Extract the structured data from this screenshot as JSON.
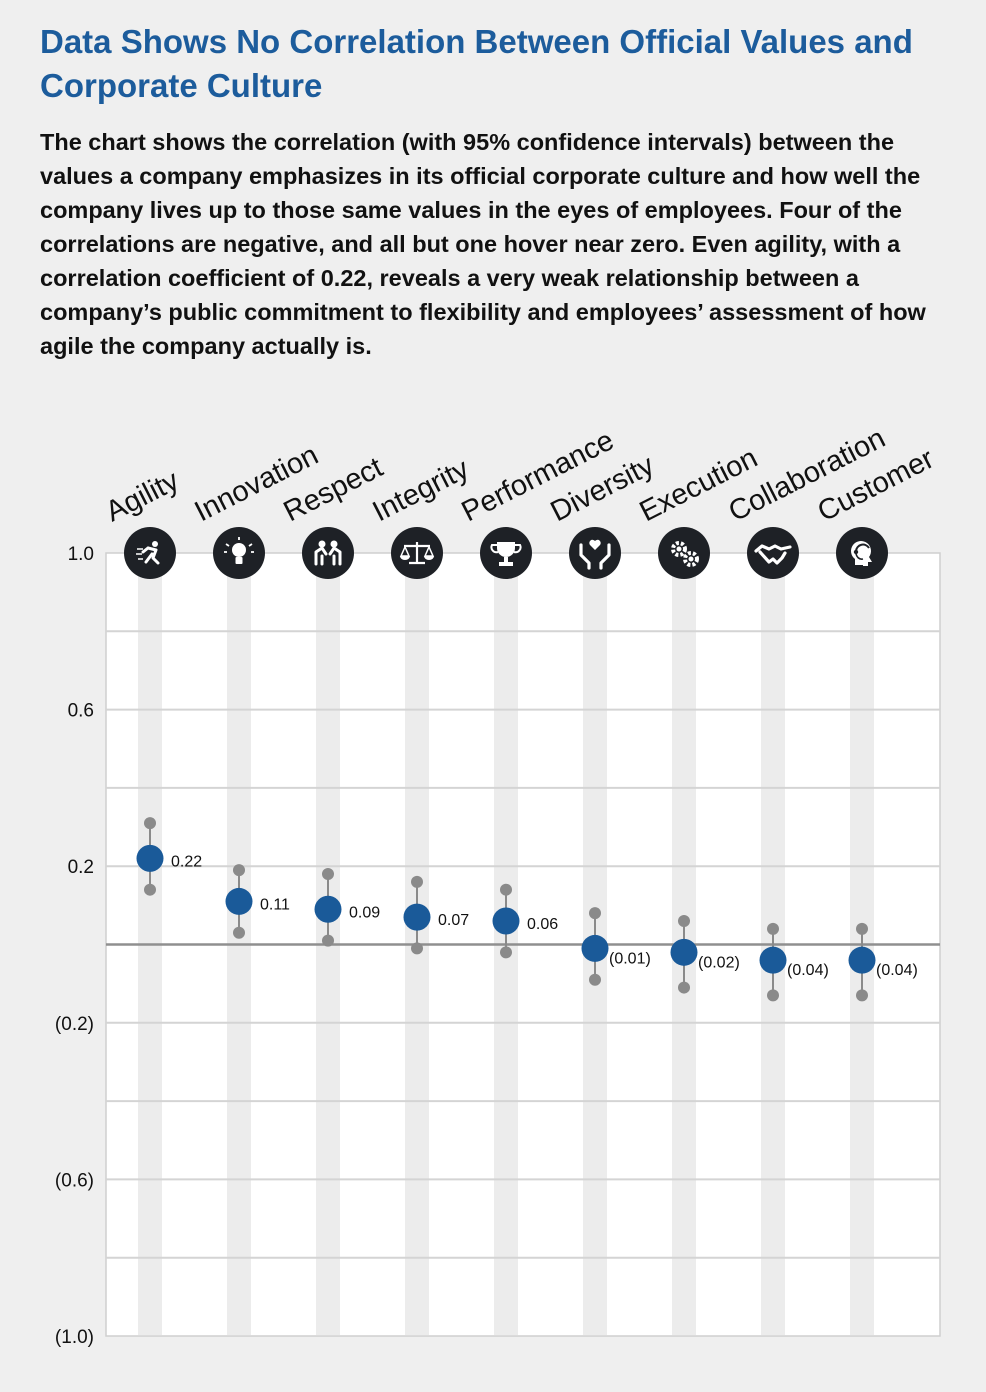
{
  "title": "Data Shows No Correlation Between Official Values and Corporate Culture",
  "subtitle": "The chart shows the correlation (with 95% confidence intervals) between the values a company emphasizes in its official corporate culture and how well the company lives up to those same values in the eyes of employees. Four of the correlations are negative, and all but one hover near zero. Even agility, with a correlation coefficient of 0.22, reveals a very weak relationship between a company’s public commitment to flexibility and employees’ assessment of how agile the company actually is.",
  "colors": {
    "title": "#1c5c9c",
    "point": "#1a5a99",
    "ci": "#8a8a8a",
    "icon_bg": "#1e2126"
  },
  "chart_data": {
    "type": "scatter",
    "title": "",
    "xlabel": "",
    "ylabel": "",
    "ylim": [
      -1.0,
      1.0
    ],
    "y_ticks": [
      1.0,
      0.6,
      0.2,
      -0.2,
      -0.6,
      -1.0
    ],
    "y_tick_labels": [
      "1.0",
      "0.6",
      "0.2",
      "(0.2)",
      "(0.6)",
      "(1.0)"
    ],
    "grid": true,
    "zero_line": true,
    "categories": [
      "Agility",
      "Innovation",
      "Respect",
      "Integrity",
      "Performance",
      "Diversity",
      "Execution",
      "Collaboration",
      "Customer"
    ],
    "icons": [
      "runner-icon",
      "lightbulb-icon",
      "people-icon",
      "scales-icon",
      "trophy-icon",
      "hands-heart-icon",
      "gears-icon",
      "handshake-icon",
      "headset-icon"
    ],
    "values": [
      0.22,
      0.11,
      0.09,
      0.07,
      0.06,
      -0.01,
      -0.02,
      -0.04,
      -0.04
    ],
    "value_labels": [
      "0.22",
      "0.11",
      "0.09",
      "0.07",
      "0.06",
      "(0.01)",
      "(0.02)",
      "(0.04)",
      "(0.04)"
    ],
    "ci_low": [
      0.14,
      0.03,
      0.01,
      -0.01,
      -0.02,
      -0.09,
      -0.11,
      -0.13,
      -0.13
    ],
    "ci_high": [
      0.31,
      0.19,
      0.18,
      0.16,
      0.14,
      0.08,
      0.06,
      0.04,
      0.04
    ]
  }
}
